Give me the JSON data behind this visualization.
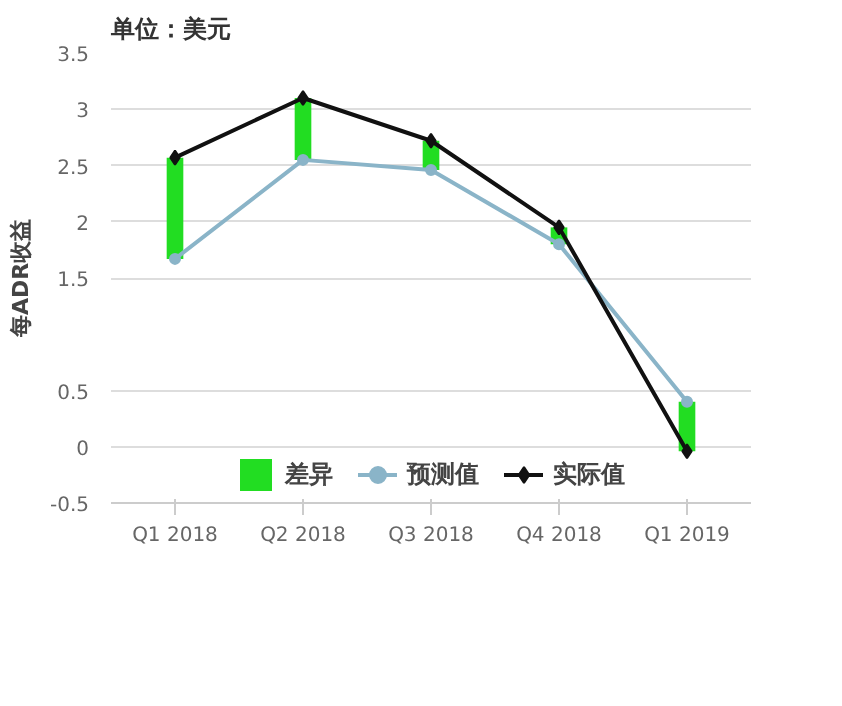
{
  "chart_data": {
    "type": "line",
    "title": "单位：美元",
    "ylabel": "每ADR收益",
    "categories": [
      "Q1 2018",
      "Q2 2018",
      "Q3 2018",
      "Q4 2018",
      "Q1 2019"
    ],
    "series": [
      {
        "name": "差异",
        "type": "bar",
        "color": "#22dd22",
        "base": [
          1.67,
          2.55,
          2.46,
          1.8,
          0.4
        ],
        "values": [
          0.9,
          0.55,
          0.26,
          0.15,
          -0.44
        ]
      },
      {
        "name": "预测值",
        "color": "#8ab4c8",
        "marker": "circle",
        "values": [
          1.67,
          2.55,
          2.46,
          1.8,
          0.4
        ]
      },
      {
        "name": "实际值",
        "color": "#111111",
        "marker": "diamond",
        "values": [
          2.57,
          3.1,
          2.72,
          1.95,
          -0.04
        ]
      }
    ],
    "ylim": [
      -0.5,
      3.5
    ],
    "yticks": [
      -0.5,
      0,
      0.5,
      1.5,
      2,
      2.5,
      3,
      3.5
    ],
    "grid": "y",
    "legend": "bottom"
  }
}
